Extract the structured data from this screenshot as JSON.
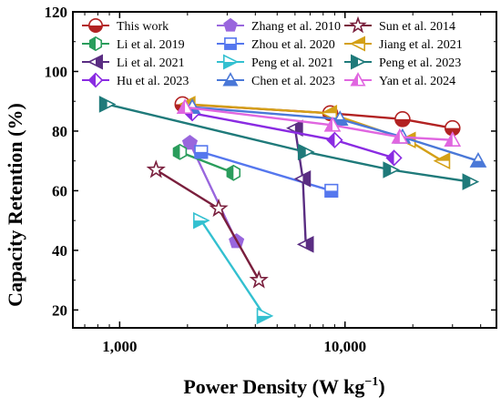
{
  "chart_data": {
    "type": "line",
    "xlabel": "Power Density (W kg",
    "xlabel_sup": "−1",
    "xlabel_end": ")",
    "ylabel": "Capacity Retention (%)",
    "xscale": "log",
    "xlim": [
      620,
      47000
    ],
    "ylim": [
      14,
      120
    ],
    "x_ticks": [
      1000,
      10000
    ],
    "x_tick_labels": [
      "1,000",
      "10,000"
    ],
    "y_ticks": [
      20,
      40,
      60,
      80,
      100,
      120
    ],
    "y_tick_labels": [
      "20",
      "40",
      "60",
      "80",
      "100",
      "120"
    ],
    "legend_position": "top",
    "series": [
      {
        "name": "This work",
        "color": "#b22222",
        "marker": "circle-half",
        "x": [
          1900,
          8600,
          18000,
          30000
        ],
        "y": [
          89,
          86,
          84,
          81
        ]
      },
      {
        "name": "Zhang et al. 2010",
        "color": "#9966dd",
        "marker": "pentagon",
        "x": [
          2050,
          3300
        ],
        "y": [
          76,
          43
        ]
      },
      {
        "name": "Sun et al. 2014",
        "color": "#7a1f3d",
        "marker": "star",
        "x": [
          1450,
          2750,
          4150
        ],
        "y": [
          67,
          54,
          30
        ]
      },
      {
        "name": "Li et al. 2019",
        "color": "#2a9d5c",
        "marker": "hexagon",
        "x": [
          1850,
          3200
        ],
        "y": [
          73,
          66
        ]
      },
      {
        "name": "Zhou et al. 2020",
        "color": "#5577ee",
        "marker": "square-half",
        "x": [
          2300,
          8700
        ],
        "y": [
          73,
          60
        ]
      },
      {
        "name": "Jiang et al. 2021",
        "color": "#d4a017",
        "marker": "triangle-left",
        "x": [
          2000,
          8500,
          19000,
          27000
        ],
        "y": [
          89,
          86,
          77,
          70
        ]
      },
      {
        "name": "Li et al. 2021",
        "color": "#5a2d82",
        "marker": "triangle-left-half",
        "x": [
          6000,
          6500,
          6700
        ],
        "y": [
          81,
          64,
          42
        ]
      },
      {
        "name": "Peng et al. 2021",
        "color": "#33c0d0",
        "marker": "triangle-right",
        "x": [
          2300,
          4400
        ],
        "y": [
          50,
          18
        ]
      },
      {
        "name": "Peng et al. 2023",
        "color": "#1f7a7a",
        "marker": "triangle-right-half",
        "x": [
          880,
          6700,
          16000,
          36000
        ],
        "y": [
          89,
          73,
          67,
          63
        ]
      },
      {
        "name": "Hu et al. 2023",
        "color": "#8a2be2",
        "marker": "diamond",
        "x": [
          2100,
          9000,
          16500
        ],
        "y": [
          86,
          77,
          71
        ]
      },
      {
        "name": "Chen et al. 2023",
        "color": "#4a78d8",
        "marker": "triangle-up-half",
        "x": [
          2100,
          9500,
          18000,
          39000
        ],
        "y": [
          88,
          84,
          78,
          70
        ]
      },
      {
        "name": "Yan et al. 2024",
        "color": "#e066e0",
        "marker": "triangle-up",
        "x": [
          1950,
          8800,
          17500,
          30000
        ],
        "y": [
          88,
          82,
          78,
          77
        ]
      }
    ]
  }
}
